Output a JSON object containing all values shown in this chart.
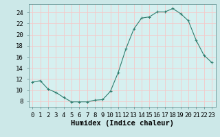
{
  "x": [
    0,
    1,
    2,
    3,
    4,
    5,
    6,
    7,
    8,
    9,
    10,
    11,
    12,
    13,
    14,
    15,
    16,
    17,
    18,
    19,
    20,
    21,
    22,
    23
  ],
  "y": [
    11.5,
    11.7,
    10.2,
    9.6,
    8.7,
    7.9,
    7.9,
    7.9,
    8.2,
    8.3,
    9.8,
    13.2,
    17.5,
    21.0,
    23.0,
    23.2,
    24.1,
    24.1,
    24.7,
    23.8,
    22.5,
    19.0,
    16.3,
    15.0
  ],
  "xlabel": "Humidex (Indice chaleur)",
  "ylim": [
    7.0,
    25.5
  ],
  "xlim": [
    -0.5,
    23.5
  ],
  "yticks": [
    8,
    10,
    12,
    14,
    16,
    18,
    20,
    22,
    24
  ],
  "xticks": [
    0,
    1,
    2,
    3,
    4,
    5,
    6,
    7,
    8,
    9,
    10,
    11,
    12,
    13,
    14,
    15,
    16,
    17,
    18,
    19,
    20,
    21,
    22,
    23
  ],
  "line_color": "#2e7d6e",
  "marker": "+",
  "bg_color": "#cce8e8",
  "grid_color": "#f5c8c8",
  "inner_bg": "#d6f0f0",
  "tick_label_fontsize": 6.5,
  "xlabel_fontsize": 7.5
}
